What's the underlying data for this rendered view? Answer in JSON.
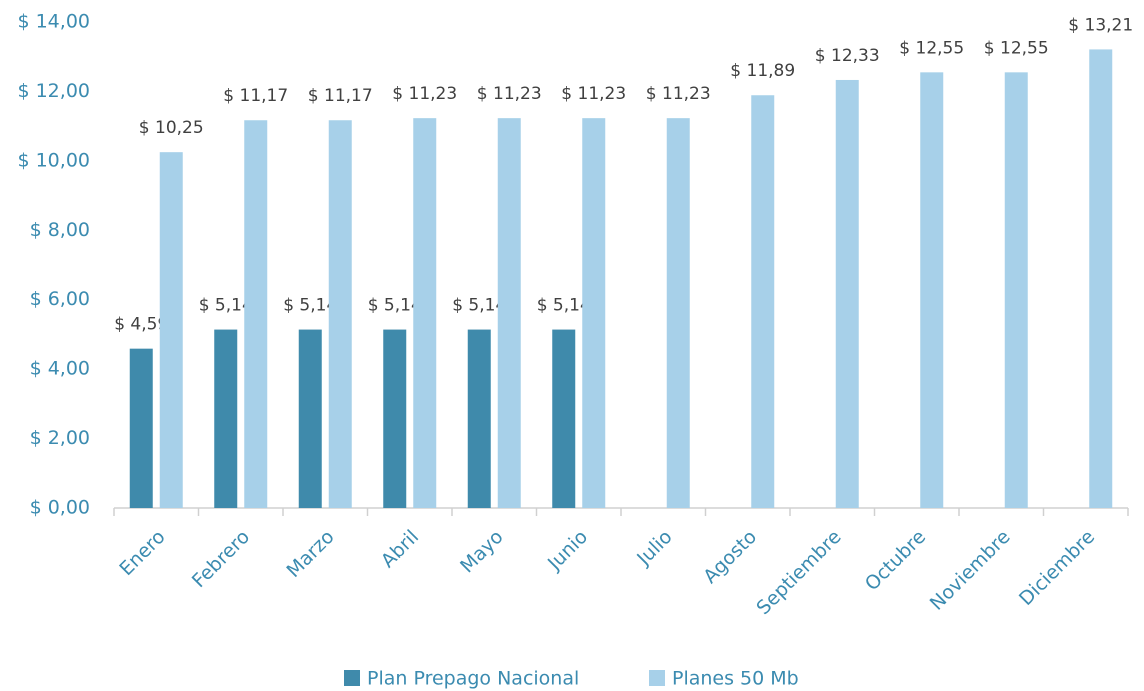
{
  "chart_data": {
    "type": "bar",
    "categories": [
      "Enero",
      "Febrero",
      "Marzo",
      "Abril",
      "Mayo",
      "Junio",
      "Julio",
      "Agosto",
      "Septiembre",
      "Octubre",
      "Noviembre",
      "Diciembre"
    ],
    "series": [
      {
        "name": "Plan Prepago Nacional",
        "color": "#3f8aab",
        "values": [
          4.59,
          5.14,
          5.14,
          5.14,
          5.14,
          5.14,
          null,
          null,
          null,
          null,
          null,
          null
        ],
        "value_labels": [
          "$ 4,59",
          "$ 5,14",
          "$ 5,14",
          "$ 5,14",
          "$ 5,14",
          "$ 5,14",
          null,
          null,
          null,
          null,
          null,
          null
        ]
      },
      {
        "name": "Planes 50 Mb",
        "color": "#a7d0e9",
        "values": [
          10.25,
          11.17,
          11.17,
          11.23,
          11.23,
          11.23,
          11.23,
          11.89,
          12.33,
          12.55,
          12.55,
          13.21
        ],
        "value_labels": [
          "$ 10,25",
          "$ 11,17",
          "$ 11,17",
          "$ 11,23",
          "$ 11,23",
          "$ 11,23",
          "$ 11,23",
          "$ 11,89",
          "$ 12,33",
          "$ 12,55",
          "$ 12,55",
          "$ 13,21"
        ]
      }
    ],
    "ylim": [
      0,
      14
    ],
    "yticks": [
      {
        "value": 0,
        "label": "$ 0,00"
      },
      {
        "value": 2,
        "label": "$ 2,00"
      },
      {
        "value": 4,
        "label": "$ 4,00"
      },
      {
        "value": 6,
        "label": "$ 6,00"
      },
      {
        "value": 8,
        "label": "$ 8,00"
      },
      {
        "value": 10,
        "label": "$ 10,00"
      },
      {
        "value": 12,
        "label": "$ 12,00"
      },
      {
        "value": 14,
        "label": "$ 14,00"
      }
    ],
    "grid": false,
    "legend": "bottom"
  }
}
